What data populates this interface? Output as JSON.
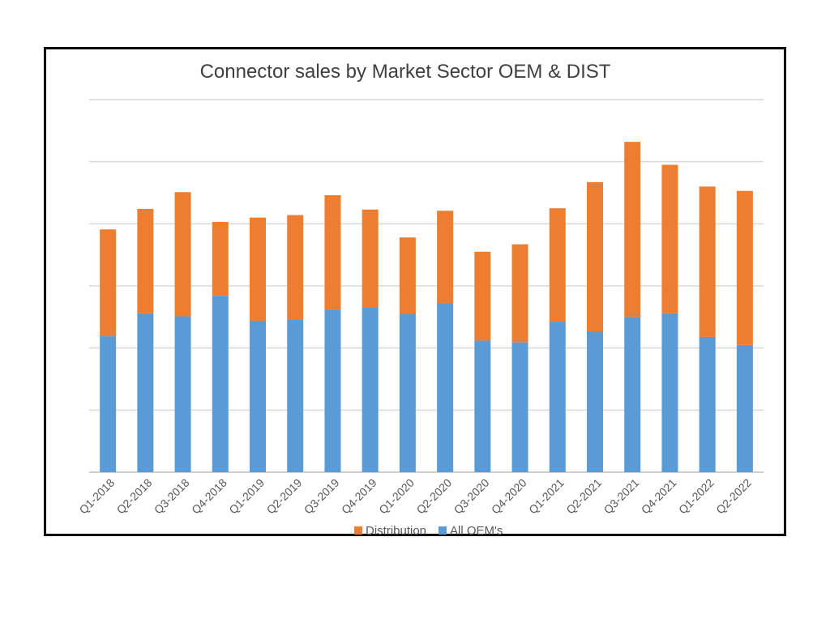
{
  "chart_data": {
    "type": "bar",
    "stacked": true,
    "title": "Connector sales by Market Sector OEM & DIST",
    "xlabel": "",
    "ylabel": "",
    "ylim": [
      0,
      6
    ],
    "grid": true,
    "legend": "bottom",
    "categories": [
      "Q1-2018",
      "Q2-2018",
      "Q3-2018",
      "Q4-2018",
      "Q1-2019",
      "Q2-2019",
      "Q3-2019",
      "Q4-2019",
      "Q1-2020",
      "Q2-2020",
      "Q3-2020",
      "Q4-2020",
      "Q1-2021",
      "Q2-2021",
      "Q3-2021",
      "Q4-2021",
      "Q1-2022",
      "Q2-2022"
    ],
    "series": [
      {
        "name": "Distribution",
        "color": "#ed7d31",
        "values": [
          1.72,
          1.68,
          2.0,
          1.19,
          1.66,
          1.68,
          1.84,
          1.57,
          1.23,
          1.49,
          1.43,
          1.58,
          1.83,
          2.4,
          2.82,
          2.39,
          2.42,
          2.48
        ]
      },
      {
        "name": "All OEM's",
        "color": "#5b9bd5",
        "values": [
          2.19,
          2.56,
          2.51,
          2.84,
          2.44,
          2.46,
          2.62,
          2.66,
          2.55,
          2.72,
          2.12,
          2.09,
          2.42,
          2.27,
          2.5,
          2.56,
          2.18,
          2.05
        ]
      }
    ]
  }
}
